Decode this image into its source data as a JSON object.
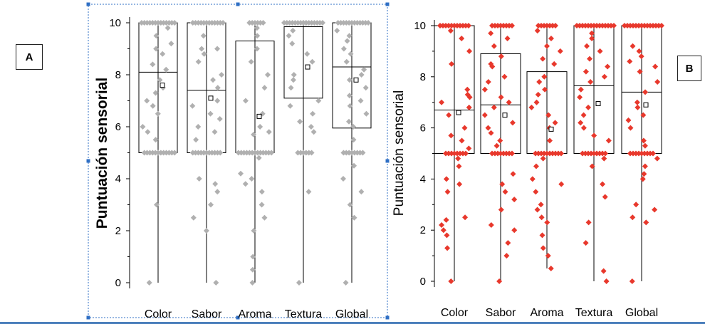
{
  "panel_labels": {
    "a": "A",
    "b": "B"
  },
  "colors": {
    "panel_a_points": "#b0b0b0",
    "panel_b_points": "#e8382c",
    "selection_border": "#2f6fc4",
    "bottom_rule": "#4a7ebb"
  },
  "chart_data": [
    {
      "panel": "A",
      "type": "box",
      "ylabel": "Puntuación sensorial",
      "ylim": [
        0,
        10
      ],
      "yticks": [
        0,
        2,
        4,
        6,
        8,
        10
      ],
      "categories": [
        "Color",
        "Sabor",
        "Aroma",
        "Textura",
        "Global"
      ],
      "boxes": [
        {
          "q1": 5.0,
          "median": 8.1,
          "q3": 10.0,
          "mean": 7.6,
          "min": 0,
          "max": 10
        },
        {
          "q1": 5.0,
          "median": 7.4,
          "q3": 10.0,
          "mean": 7.1,
          "min": 0,
          "max": 10
        },
        {
          "q1": 5.0,
          "median": 5.0,
          "q3": 9.3,
          "mean": 6.4,
          "min": 0,
          "max": 10
        },
        {
          "q1": 7.1,
          "median": 9.85,
          "q3": 9.85,
          "mean": 8.3,
          "min": 0,
          "max": 10
        },
        {
          "q1": 5.95,
          "median": 8.3,
          "q3": 10.0,
          "mean": 7.8,
          "min": 0,
          "max": 10
        }
      ],
      "points": [
        [
          10,
          10,
          10,
          10,
          10,
          10,
          10,
          10,
          10,
          10,
          10,
          10,
          10,
          9.8,
          9.5,
          9.2,
          9.0,
          8.8,
          8.4,
          8.2,
          7.8,
          7.5,
          7.3,
          7.0,
          6.8,
          6.5,
          6.0,
          5.8,
          5.5,
          5.0,
          5.0,
          5.0,
          5.0,
          5.0,
          5.0,
          5.0,
          5.0,
          5.0,
          5.0,
          5.0,
          5.0,
          3.0,
          0
        ],
        [
          10,
          10,
          10,
          10,
          10,
          10,
          10,
          10,
          10,
          10,
          10,
          10,
          9.5,
          9.0,
          9.0,
          8.8,
          8.5,
          8.0,
          7.8,
          7.5,
          7.0,
          6.8,
          6.5,
          6.3,
          6.0,
          5.8,
          5.5,
          5.0,
          5.0,
          5.0,
          5.0,
          5.0,
          5.0,
          5.0,
          5.0,
          5.0,
          5.0,
          5.0,
          4.0,
          3.8,
          3.5,
          3.0,
          2.5,
          2.0,
          0
        ],
        [
          10,
          10,
          10,
          10,
          10,
          10,
          9.8,
          9.5,
          9.0,
          8.5,
          8.0,
          7.5,
          7.0,
          6.5,
          6.0,
          5.8,
          5.7,
          5.0,
          5.0,
          5.0,
          5.0,
          5.0,
          5.0,
          5.0,
          5.0,
          5.0,
          5.0,
          5.0,
          5.0,
          5.0,
          4.8,
          4.2,
          4.0,
          3.8,
          3.5,
          3.0,
          2.5,
          2.0,
          1.0,
          0.5,
          0
        ],
        [
          10,
          10,
          10,
          10,
          10,
          10,
          10,
          10,
          10,
          10,
          10,
          10,
          10,
          10,
          10,
          10,
          10,
          9.7,
          9.5,
          9.2,
          8.8,
          8.5,
          8.0,
          7.8,
          7.5,
          7.0,
          6.8,
          6.5,
          6.2,
          6.0,
          5.8,
          5.0,
          5.0,
          5.0,
          5.0,
          5.0,
          5.0,
          3.5,
          0
        ],
        [
          10,
          10,
          10,
          10,
          10,
          10,
          10,
          10,
          10,
          10,
          10,
          10,
          9.7,
          9.5,
          9.3,
          9.0,
          8.8,
          8.5,
          8.2,
          8.0,
          7.8,
          7.5,
          7.2,
          7.0,
          6.8,
          6.5,
          6.2,
          6.0,
          5.5,
          5.0,
          5.0,
          5.0,
          5.0,
          5.0,
          5.0,
          5.0,
          5.0,
          4.5,
          4.0,
          3.5,
          3.0,
          2.5,
          0
        ]
      ]
    },
    {
      "panel": "B",
      "type": "box",
      "ylabel": "Puntuación sensorial",
      "ylim": [
        0,
        10
      ],
      "yticks": [
        0,
        2,
        4,
        6,
        8,
        10
      ],
      "categories": [
        "Color",
        "Sabor",
        "Aroma",
        "Textura",
        "Global"
      ],
      "boxes": [
        {
          "q1": 5.0,
          "median": 6.7,
          "q3": 10.0,
          "mean": 6.6,
          "min": 0,
          "max": 10
        },
        {
          "q1": 5.0,
          "median": 6.9,
          "q3": 8.9,
          "mean": 6.5,
          "min": 0,
          "max": 10
        },
        {
          "q1": 5.0,
          "median": 5.0,
          "q3": 8.2,
          "mean": 5.95,
          "min": 0.5,
          "max": 10
        },
        {
          "q1": 5.0,
          "median": 7.65,
          "q3": 10.0,
          "mean": 6.95,
          "min": 0,
          "max": 10
        },
        {
          "q1": 5.0,
          "median": 7.4,
          "q3": 10.0,
          "mean": 6.9,
          "min": 0,
          "max": 10
        }
      ],
      "points": [
        [
          10,
          10,
          10,
          10,
          10,
          10,
          10,
          10,
          10,
          10,
          10,
          9.8,
          9.5,
          9.0,
          8.5,
          7.5,
          7.3,
          7.2,
          7.0,
          6.8,
          6.5,
          6.0,
          5.7,
          5.5,
          5.2,
          5.0,
          5.0,
          5.0,
          5.0,
          5.0,
          5.0,
          5.0,
          5.0,
          4.8,
          4.5,
          4.0,
          3.8,
          3.5,
          2.5,
          2.4,
          2.2,
          2.0,
          1.8,
          1.3,
          0
        ],
        [
          10,
          10,
          10,
          10,
          10,
          10,
          10,
          10,
          9.7,
          9.5,
          9.2,
          8.8,
          8.5,
          8.4,
          8.0,
          7.8,
          7.5,
          7.2,
          7.0,
          6.8,
          6.5,
          6.2,
          6.0,
          5.8,
          5.5,
          5.3,
          5.0,
          5.0,
          5.0,
          5.0,
          5.0,
          5.0,
          5.0,
          5.0,
          4.2,
          3.8,
          3.5,
          3.2,
          2.8,
          2.2,
          2.0,
          1.5,
          1.0,
          0
        ],
        [
          10,
          10,
          10,
          10,
          10,
          10,
          10,
          9.8,
          9.5,
          9.2,
          9.0,
          8.7,
          8.5,
          8.0,
          7.8,
          7.5,
          7.3,
          7.0,
          6.8,
          6.5,
          6.2,
          6.0,
          5.5,
          5.0,
          5.0,
          5.0,
          5.0,
          5.0,
          5.0,
          5.0,
          5.0,
          5.0,
          5.0,
          4.8,
          4.5,
          4.0,
          3.8,
          3.5,
          3.0,
          2.8,
          2.5,
          2.3,
          1.8,
          1.3,
          1.0,
          0.5
        ],
        [
          10,
          10,
          10,
          10,
          10,
          10,
          10,
          10,
          10,
          10,
          10,
          10,
          10,
          10,
          9.7,
          9.5,
          9.2,
          9.0,
          8.7,
          8.4,
          8.2,
          8.0,
          7.8,
          7.5,
          7.2,
          6.8,
          6.5,
          6.2,
          6.0,
          5.7,
          5.5,
          5.0,
          5.0,
          5.0,
          5.0,
          5.0,
          5.0,
          5.0,
          5.0,
          5.0,
          4.8,
          4.5,
          3.8,
          3.3,
          2.3,
          1.5,
          0.4,
          0
        ],
        [
          10,
          10,
          10,
          10,
          10,
          10,
          10,
          10,
          10,
          10,
          10,
          10,
          10,
          10,
          9.2,
          9.0,
          8.8,
          8.6,
          8.4,
          8.2,
          7.8,
          7.4,
          7.0,
          6.8,
          6.5,
          6.3,
          6.0,
          5.5,
          5.3,
          5.0,
          5.0,
          5.0,
          5.0,
          5.0,
          5.0,
          5.0,
          5.0,
          5.0,
          4.8,
          4.5,
          4.2,
          4.0,
          3.0,
          2.8,
          2.5,
          2.3,
          0
        ]
      ]
    }
  ]
}
